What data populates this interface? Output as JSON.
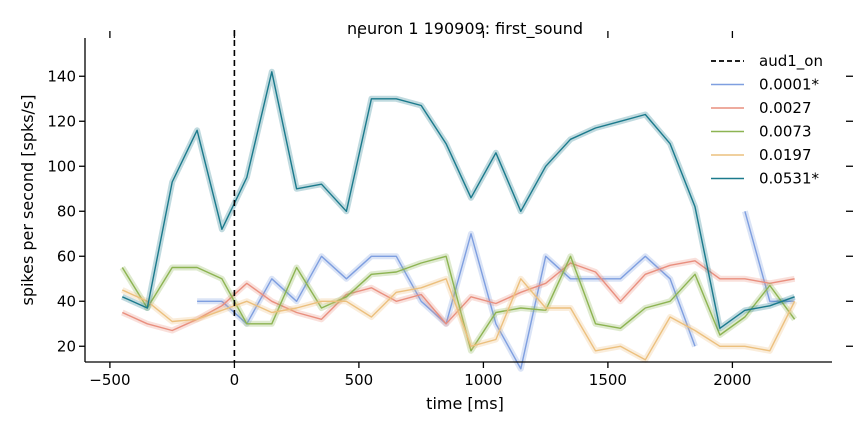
{
  "chart_data": {
    "type": "line",
    "title": "neuron 1 190909: first_sound",
    "xlabel": "time [ms]",
    "ylabel": "spikes per second [spks/s]",
    "xlim": [
      -600,
      2400
    ],
    "ylim": [
      13,
      157
    ],
    "xticks": [
      -500,
      0,
      500,
      1000,
      1500,
      2000
    ],
    "yticks": [
      20,
      40,
      60,
      80,
      100,
      120,
      140
    ],
    "grid": false,
    "legend_position": "top-right",
    "vline": {
      "name": "aud1_on",
      "x": 0,
      "color": "#000000",
      "style": "dashed"
    },
    "series": [
      {
        "name": "0.0001*",
        "color": "#7f9fe0",
        "x": [
          -150,
          -50,
          50,
          150,
          250,
          350,
          450,
          550,
          650,
          750,
          850,
          950,
          1050,
          1150,
          1250,
          1350,
          1450,
          1550,
          1650,
          1750,
          1850,
          null,
          2050,
          2150,
          2250
        ],
        "values": [
          40,
          40,
          30,
          50,
          40,
          60,
          50,
          60,
          60,
          40,
          30,
          70,
          30,
          10,
          60,
          50,
          50,
          50,
          60,
          50,
          20,
          null,
          80,
          40,
          40
        ]
      },
      {
        "name": "0.0027",
        "color": "#e98f7f",
        "x": [
          -450,
          -350,
          -250,
          -150,
          -50,
          50,
          150,
          250,
          350,
          450,
          550,
          650,
          750,
          850,
          950,
          1050,
          1150,
          1250,
          1350,
          1450,
          1550,
          1650,
          1750,
          1850,
          1950,
          2050,
          2150,
          2250
        ],
        "values": [
          35,
          30,
          27,
          32,
          38,
          48,
          40,
          35,
          32,
          43,
          46,
          40,
          43,
          30,
          42,
          39,
          44,
          48,
          57,
          53,
          40,
          52,
          56,
          58,
          50,
          50,
          48,
          50
        ]
      },
      {
        "name": "0.0073",
        "color": "#8db452",
        "x": [
          -450,
          -350,
          -250,
          -150,
          -50,
          50,
          150,
          250,
          350,
          450,
          550,
          650,
          750,
          850,
          950,
          1050,
          1150,
          1250,
          1350,
          1450,
          1550,
          1650,
          1750,
          1850,
          1950,
          2050,
          2150,
          2250
        ],
        "values": [
          55,
          37,
          55,
          55,
          50,
          30,
          30,
          55,
          37,
          42,
          52,
          53,
          57,
          60,
          18,
          35,
          37,
          36,
          60,
          30,
          28,
          37,
          40,
          52,
          25,
          33,
          47,
          32
        ]
      },
      {
        "name": "0.0197",
        "color": "#ecc07e",
        "x": [
          -450,
          -350,
          -250,
          -150,
          -50,
          50,
          150,
          250,
          350,
          450,
          550,
          650,
          750,
          850,
          950,
          1050,
          1150,
          1250,
          1350,
          1450,
          1550,
          1650,
          1750,
          1850,
          1950,
          2050,
          2150,
          2250
        ],
        "values": [
          45,
          40,
          31,
          32,
          36,
          40,
          35,
          37,
          40,
          40,
          33,
          44,
          46,
          50,
          20,
          23,
          50,
          37,
          37,
          18,
          20,
          14,
          33,
          27,
          20,
          20,
          18,
          40
        ]
      },
      {
        "name": "0.0531*",
        "color": "#1b7a8c",
        "x": [
          -450,
          -350,
          -250,
          -150,
          -50,
          50,
          150,
          250,
          350,
          450,
          550,
          650,
          750,
          850,
          950,
          1050,
          1150,
          1250,
          1350,
          1450,
          1550,
          1650,
          1750,
          1850,
          1950,
          2050,
          2150,
          2250
        ],
        "values": [
          42,
          37,
          93,
          116,
          72,
          95,
          142,
          90,
          92,
          80,
          130,
          130,
          127,
          110,
          86,
          106,
          80,
          100,
          112,
          117,
          120,
          123,
          110,
          82,
          28,
          36,
          38,
          42
        ]
      }
    ]
  }
}
